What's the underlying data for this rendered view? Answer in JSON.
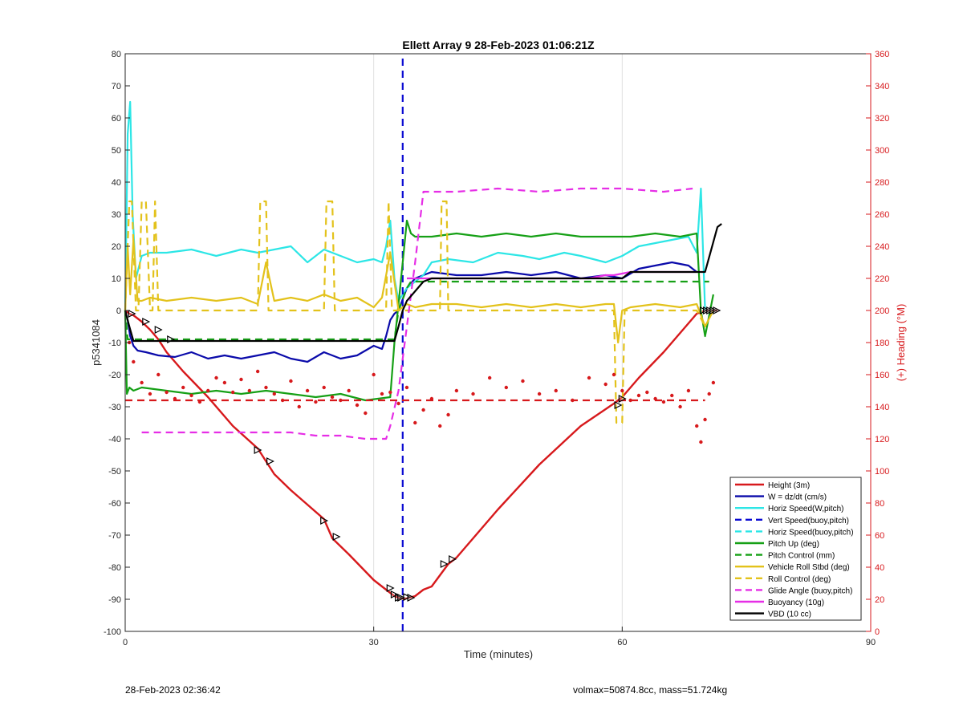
{
  "chart_data": {
    "type": "line",
    "title": "Ellett Array 9 28-Feb-2023 01:06:21Z",
    "xlabel": "Time (minutes)",
    "ylabel": "p5341084",
    "y2label": "(+) Heading (°M)",
    "xlim": [
      0,
      90
    ],
    "ylim": [
      -100,
      80
    ],
    "y2lim": [
      0,
      360
    ],
    "xticks": [
      0,
      30,
      60,
      90
    ],
    "yticks": [
      -100,
      -90,
      -80,
      -70,
      -60,
      -50,
      -40,
      -30,
      -20,
      -10,
      0,
      10,
      20,
      30,
      40,
      50,
      60,
      70,
      80
    ],
    "y2ticks": [
      0,
      20,
      40,
      60,
      80,
      100,
      120,
      140,
      160,
      180,
      200,
      220,
      240,
      260,
      280,
      300,
      320,
      340,
      360
    ],
    "grid": "x-only",
    "legend_position": "bottom-right",
    "colors": {
      "height": "#d7191c",
      "w": "#0a0aaa",
      "horiz_w": "#2de6e6",
      "vert_buoy": "#0a0ad2",
      "pitch": "#16a016",
      "roll": "#e3c21b",
      "glide": "#e62ee6",
      "buoyancy": "#e62ee6",
      "vbd": "#000000",
      "heading": "#d7191c",
      "right_axis": "#d7191c"
    },
    "series": [
      {
        "name": "Height (3m)",
        "style": "solid",
        "color_key": "height",
        "x": [
          0,
          0.5,
          1,
          1.5,
          2,
          3,
          4,
          5,
          7,
          10,
          13,
          16,
          17,
          18,
          20,
          24,
          25,
          27,
          30,
          31.5,
          32,
          32.5,
          33,
          33.5,
          34,
          35,
          36,
          37,
          39,
          40,
          45,
          50,
          55,
          59,
          60,
          62,
          65,
          68,
          69,
          70,
          71.5
        ],
        "y": [
          0,
          -1,
          -1.5,
          -2.5,
          -3.5,
          -6,
          -9,
          -13,
          -19,
          -27,
          -36,
          -43,
          -47,
          -51,
          -56,
          -65,
          -71,
          -76,
          -84,
          -87,
          -88,
          -89,
          -89.5,
          -89.8,
          -89.7,
          -89,
          -87,
          -86,
          -79,
          -77,
          -62,
          -48,
          -36,
          -29,
          -27,
          -21,
          -13,
          -4,
          -1,
          0,
          0
        ]
      },
      {
        "name": "W = dz/dt (cm/s)",
        "style": "solid",
        "color_key": "w",
        "x": [
          0,
          0.3,
          0.6,
          1,
          1.5,
          2.5,
          4,
          6,
          8,
          10,
          12,
          14,
          16,
          18,
          20,
          22,
          24,
          26,
          28,
          30,
          31,
          31.5,
          32,
          32.5,
          33,
          34,
          35,
          36,
          37,
          40,
          43,
          46,
          49,
          52,
          55,
          58,
          60,
          62,
          64,
          66,
          68,
          69
        ],
        "y": [
          0,
          -3,
          -8,
          -11,
          -12.5,
          -13,
          -14,
          -14.5,
          -13,
          -15,
          -14,
          -15,
          -14,
          -13,
          -15,
          -16,
          -13,
          -15,
          -14,
          -11,
          -12,
          -8,
          -3,
          -1,
          0,
          7,
          10,
          11,
          12,
          11,
          11,
          12,
          11,
          12,
          10,
          11,
          10,
          13,
          14,
          15,
          14,
          12
        ]
      },
      {
        "name": "Horiz Speed(W,pitch)",
        "style": "solid",
        "color_key": "horiz_w",
        "x": [
          0,
          0.3,
          0.6,
          0.9,
          1.3,
          2,
          3,
          5,
          8,
          11,
          14,
          16,
          18,
          20,
          22,
          24,
          26,
          28,
          30,
          31,
          31.5,
          32,
          32.5,
          33,
          34,
          35,
          36,
          37,
          39,
          42,
          45,
          48,
          50,
          53,
          55,
          58,
          60,
          62,
          64,
          66,
          68,
          69,
          69.5,
          70
        ],
        "y": [
          0,
          55,
          65,
          30,
          10,
          17,
          18,
          18,
          19,
          17,
          19,
          18,
          19,
          20,
          15,
          19,
          17,
          15,
          16,
          15,
          20,
          28,
          10,
          3,
          7,
          9,
          11,
          15,
          16,
          15,
          18,
          17,
          16,
          18,
          17,
          15,
          17,
          20,
          21,
          22,
          23,
          18,
          38,
          0
        ]
      },
      {
        "name": "Vert Speed(buoy,pitch)",
        "style": "dashed",
        "color_key": "vert_buoy",
        "x": [
          33.5,
          33.5
        ],
        "y": [
          -100,
          80
        ]
      },
      {
        "name": "Horiz Speed(buoy,pitch)",
        "style": "dashed",
        "color_key": "horiz_w",
        "x": [],
        "y": []
      },
      {
        "name": "Pitch Up (deg)",
        "style": "solid",
        "color_key": "pitch",
        "x": [
          0,
          0.2,
          0.5,
          1,
          2,
          5,
          8,
          11,
          14,
          17,
          20,
          23,
          26,
          29,
          32,
          32.5,
          33,
          34,
          34.5,
          35,
          37,
          40,
          43,
          46,
          49,
          52,
          55,
          58,
          61,
          64,
          67,
          69,
          69.5,
          70,
          71
        ],
        "y": [
          0,
          -26,
          -24,
          -25,
          -24,
          -25,
          -26,
          -25,
          -26,
          -25,
          -26,
          -27,
          -26,
          -28,
          -27,
          -10,
          2,
          28,
          24,
          23,
          23,
          24,
          23,
          24,
          23,
          24,
          23,
          23,
          23,
          24,
          23,
          24,
          0,
          -8,
          5
        ]
      },
      {
        "name": "Pitch Control (mm)",
        "style": "dashed",
        "color_key": "pitch",
        "x": [
          0,
          0.3,
          1,
          32.5,
          33,
          34,
          34.5,
          69,
          70.5
        ],
        "y": [
          0,
          -9,
          -9,
          -9,
          0,
          7,
          9,
          9,
          9
        ]
      },
      {
        "name": "Vehicle Roll Stbd (deg)",
        "style": "solid",
        "color_key": "roll",
        "x": [
          0,
          0.3,
          0.6,
          1,
          1.5,
          2,
          3,
          5,
          8,
          11,
          14,
          16,
          17,
          18,
          20,
          22,
          24,
          26,
          28,
          30,
          31,
          32,
          33,
          34,
          35,
          37,
          38.5,
          40,
          43,
          46,
          49,
          52,
          55,
          58,
          59,
          59.5,
          60,
          61,
          64,
          67,
          69,
          70,
          71
        ],
        "y": [
          0,
          20,
          5,
          22,
          3,
          3,
          4,
          3,
          4,
          3,
          4,
          2,
          15,
          3,
          4,
          3,
          5,
          3,
          4,
          1,
          4,
          18,
          0,
          2,
          1,
          2,
          2,
          2,
          1,
          2,
          1,
          2,
          1,
          2,
          2,
          -10,
          0,
          1,
          2,
          1,
          2,
          -5,
          0
        ]
      },
      {
        "name": "Roll Control (deg)",
        "style": "dashed",
        "color_key": "roll",
        "x": [
          0,
          0.5,
          0.8,
          1.3,
          1.6,
          2,
          2.5,
          3,
          3.3,
          3.6,
          4,
          16,
          16.3,
          17,
          17.3,
          18,
          24,
          24.3,
          25,
          25.3,
          26,
          31.5,
          31.8,
          32.2,
          33,
          38,
          38.2,
          38.8,
          39,
          59,
          59.3,
          60,
          60.3,
          69,
          70
        ],
        "y": [
          0,
          34,
          34,
          0,
          0,
          34,
          34,
          0,
          0,
          34,
          0,
          0,
          34,
          34,
          0,
          0,
          0,
          34,
          34,
          0,
          0,
          0,
          34,
          0,
          0,
          0,
          34,
          34,
          0,
          0,
          -35,
          -35,
          0,
          0,
          -5
        ]
      },
      {
        "name": "Glide Angle (buoy,pitch)",
        "style": "dashed",
        "color_key": "glide",
        "x": [
          2,
          5,
          8,
          11,
          14,
          17,
          20,
          23,
          26,
          29,
          31.5,
          32,
          33,
          34,
          35,
          36,
          40,
          45,
          50,
          55,
          60,
          65,
          68.5
        ],
        "y": [
          -38,
          -38,
          -38,
          -38,
          -38,
          -38,
          -38,
          -39,
          -39,
          -40,
          -40,
          -36,
          -25,
          -5,
          15,
          37,
          37,
          38,
          37,
          38,
          38,
          37,
          38
        ]
      },
      {
        "name": "Buoyancy (10g)",
        "style": "solid",
        "color_key": "buoyancy",
        "x": [
          34,
          36,
          55,
          56,
          58,
          59,
          61,
          69
        ],
        "y": [
          10,
          10,
          10,
          10,
          11,
          11,
          12,
          12
        ]
      },
      {
        "name": "VBD (10 cc)",
        "style": "solid",
        "color_key": "vbd",
        "x": [
          0,
          0.5,
          1,
          32.5,
          33,
          33.5,
          34,
          35,
          36,
          37,
          55,
          56,
          58,
          60,
          61,
          69,
          69.5,
          70,
          71.5,
          72
        ],
        "y": [
          0,
          -5,
          -9.5,
          -9.5,
          -5,
          0,
          3,
          6,
          9,
          10,
          10,
          10,
          10,
          10,
          12,
          12,
          12,
          12,
          26,
          27
        ]
      },
      {
        "name": "Heading",
        "style": "dots",
        "color_key": "heading",
        "axis": "right",
        "x": [
          0.5,
          1,
          2,
          3,
          4,
          5,
          6,
          7,
          8,
          9,
          10,
          11,
          12,
          13,
          14,
          15,
          16,
          17,
          18,
          19,
          20,
          21,
          22,
          23,
          24,
          25,
          26,
          27,
          28,
          29,
          30,
          31,
          32,
          33,
          34,
          35,
          36,
          37,
          38,
          39,
          40,
          42,
          44,
          46,
          48,
          50,
          52,
          54,
          56,
          58,
          59,
          60,
          61,
          62,
          63,
          64,
          65,
          66,
          67,
          68,
          69,
          69.5,
          70,
          70.5,
          71
        ],
        "y": [
          180,
          168,
          155,
          148,
          160,
          149,
          145,
          152,
          147,
          143,
          150,
          158,
          155,
          149,
          157,
          150,
          162,
          152,
          148,
          144,
          156,
          140,
          150,
          143,
          152,
          146,
          144,
          150,
          141,
          136,
          160,
          148,
          149,
          142,
          152,
          130,
          138,
          145,
          128,
          135,
          150,
          148,
          158,
          152,
          156,
          148,
          150,
          144,
          158,
          154,
          160,
          150,
          144,
          147,
          149,
          145,
          143,
          147,
          140,
          150,
          128,
          118,
          132,
          148,
          155
        ]
      },
      {
        "name": "Heading target",
        "style": "dashed",
        "color_key": "heading",
        "axis": "right",
        "x": [
          0,
          70
        ],
        "y": [
          144,
          144
        ]
      }
    ],
    "markers": {
      "x": [
        0.8,
        2.5,
        4,
        5.5,
        16,
        17.5,
        24,
        25.5,
        32,
        32.5,
        33,
        33.3,
        34,
        34.5,
        38.5,
        39.5,
        59.5,
        60,
        69.8,
        70.2,
        70.6,
        71,
        71.4
      ],
      "y": [
        -1,
        -3.5,
        -6,
        -9,
        -43.5,
        -47,
        -65.5,
        -70.5,
        -86.5,
        -88.5,
        -89.5,
        -89.5,
        -89.3,
        -89.5,
        -79,
        -77.5,
        -29.5,
        -27.5,
        0,
        0,
        0,
        0,
        0
      ]
    },
    "legend": [
      "Height (3m)",
      "W = dz/dt (cm/s)",
      "Horiz Speed(W,pitch)",
      "Vert Speed(buoy,pitch)",
      "Horiz Speed(buoy,pitch)",
      "Pitch Up (deg)",
      "Pitch Control (mm)",
      "Vehicle Roll Stbd (deg)",
      "Roll Control (deg)",
      "Glide Angle (buoy,pitch)",
      "Buoyancy (10g)",
      "VBD (10 cc)"
    ]
  },
  "footer": {
    "left": "28-Feb-2023 02:36:42",
    "right": "volmax=50874.8cc, mass=51.724kg"
  }
}
